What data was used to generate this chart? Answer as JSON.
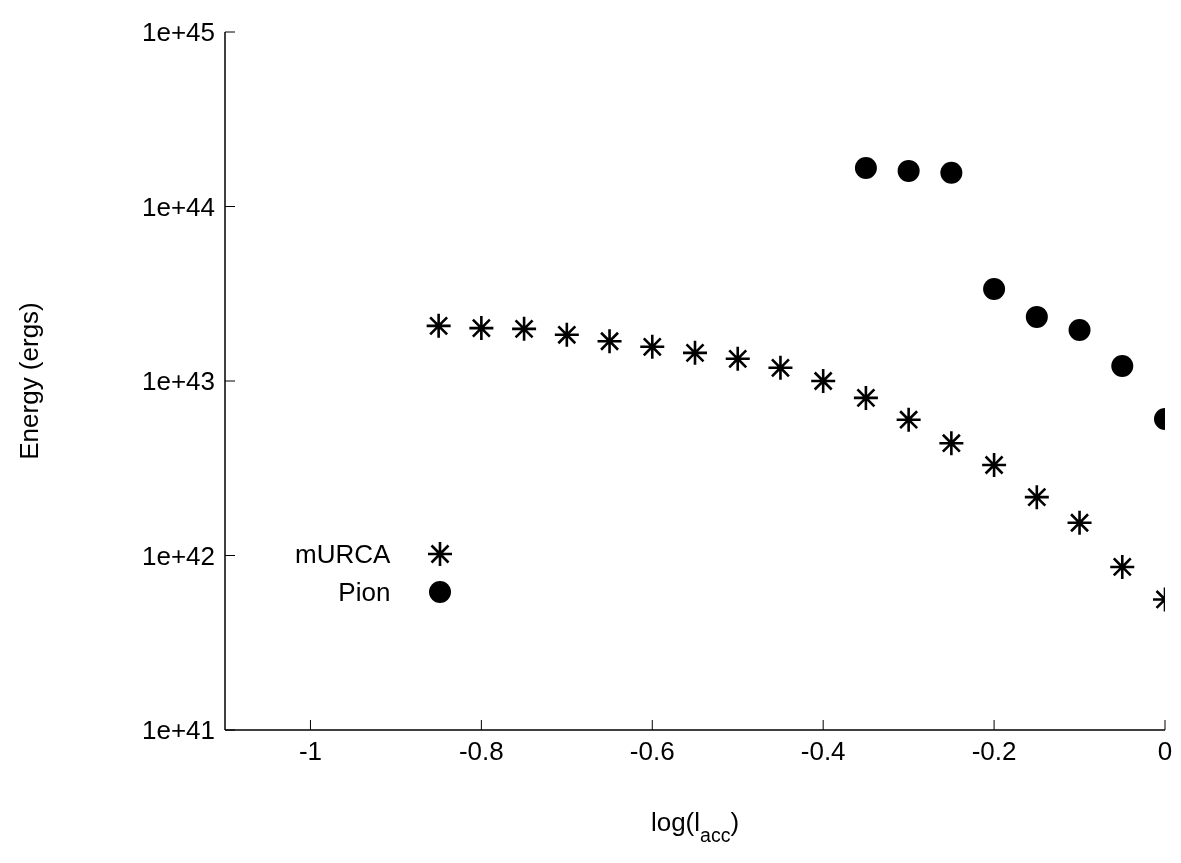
{
  "chart_data": {
    "type": "scatter",
    "xlabel": "log(l$_{acc}$)",
    "ylabel": "Energy (ergs)",
    "log": "y",
    "xlim": [
      -1.1,
      0
    ],
    "xticks": [
      -1,
      -0.8,
      -0.6,
      -0.4,
      -0.2,
      0
    ],
    "ylim": [
      1e+41,
      1e+45
    ],
    "yticks": [
      {
        "value": 1e+41,
        "label": "1e+41"
      },
      {
        "value": 1e+42,
        "label": "1e+42"
      },
      {
        "value": 1e+43,
        "label": "1e+43"
      },
      {
        "value": 1e+44,
        "label": "1e+44"
      },
      {
        "value": 1e+45,
        "label": "1e+45"
      }
    ],
    "grid": false,
    "legend": "bottom left",
    "series": [
      {
        "name": "mURCA",
        "color": "#000000",
        "marker": "cross",
        "x": [
          -0.85,
          -0.8,
          -0.75,
          -0.7,
          -0.65,
          -0.6,
          -0.55,
          -0.5,
          -0.45,
          -0.4,
          -0.35,
          -0.3,
          -0.25,
          -0.2,
          -0.15,
          -0.1,
          -0.05,
          0
        ],
        "values": [
          2.07e+43,
          2.01e+43,
          1.99e+43,
          1.84e+43,
          1.69e+43,
          1.57e+43,
          1.45e+43,
          1.34e+43,
          1.19e+43,
          1e+43,
          8e+42,
          6e+42,
          4.4e+42,
          3.3e+42,
          2.16e+42,
          1.54e+42,
          8.6e+41,
          5.6e+41
        ]
      },
      {
        "name": "Pion",
        "color": "#000000",
        "marker": "circle",
        "x": [
          -0.35,
          -0.3,
          -0.25,
          -0.2,
          -0.15,
          -0.1,
          -0.05,
          0
        ],
        "values": [
          1.66e+44,
          1.6e+44,
          1.56e+44,
          3.37e+43,
          2.33e+43,
          1.96e+43,
          1.22e+43,
          6.06e+42
        ]
      }
    ]
  }
}
